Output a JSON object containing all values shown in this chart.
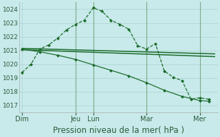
{
  "bg_color": "#c8eaea",
  "grid_color": "#b0d4d4",
  "line_color": "#1a6b2a",
  "vline_color": "#7aaa8a",
  "title": "Pression niveau de la mer( hPa )",
  "ylim": [
    1016.5,
    1024.5
  ],
  "yticks": [
    1017,
    1018,
    1019,
    1020,
    1021,
    1022,
    1023,
    1024
  ],
  "xlim": [
    -2,
    132
  ],
  "day_labels": [
    "Dim",
    "Jeu",
    "Lun",
    "Mar",
    "Mer"
  ],
  "day_positions": [
    0,
    36,
    48,
    84,
    120
  ],
  "vlines": [
    36,
    48,
    84,
    120
  ],
  "lines": [
    {
      "x": [
        0,
        6,
        12,
        18,
        24,
        30,
        36,
        42,
        48,
        54,
        60,
        66,
        72,
        78,
        84,
        90,
        96,
        102,
        108,
        114,
        120,
        126
      ],
      "y": [
        1019.4,
        1020.0,
        1021.1,
        1021.4,
        1021.9,
        1022.5,
        1022.9,
        1023.2,
        1024.1,
        1023.85,
        1023.2,
        1022.9,
        1022.55,
        1021.35,
        1021.1,
        1021.5,
        1019.5,
        1019.05,
        1018.8,
        1017.45,
        1017.55,
        1017.45
      ],
      "style": "dashed",
      "marker": true,
      "lw": 0.9
    },
    {
      "x": [
        0,
        130
      ],
      "y": [
        1021.15,
        1020.75
      ],
      "style": "solid",
      "marker": false,
      "lw": 1.1
    },
    {
      "x": [
        0,
        130
      ],
      "y": [
        1021.05,
        1020.55
      ],
      "style": "solid",
      "marker": false,
      "lw": 1.1
    },
    {
      "x": [
        0,
        12,
        24,
        36,
        48,
        60,
        72,
        84,
        96,
        108,
        120,
        126
      ],
      "y": [
        1021.1,
        1020.9,
        1020.65,
        1020.35,
        1019.95,
        1019.55,
        1019.15,
        1018.65,
        1018.1,
        1017.65,
        1017.35,
        1017.3
      ],
      "style": "solid",
      "marker": true,
      "lw": 0.9
    }
  ],
  "title_fontsize": 8.5,
  "tick_fontsize": 6.5,
  "day_label_fontsize": 7.0
}
